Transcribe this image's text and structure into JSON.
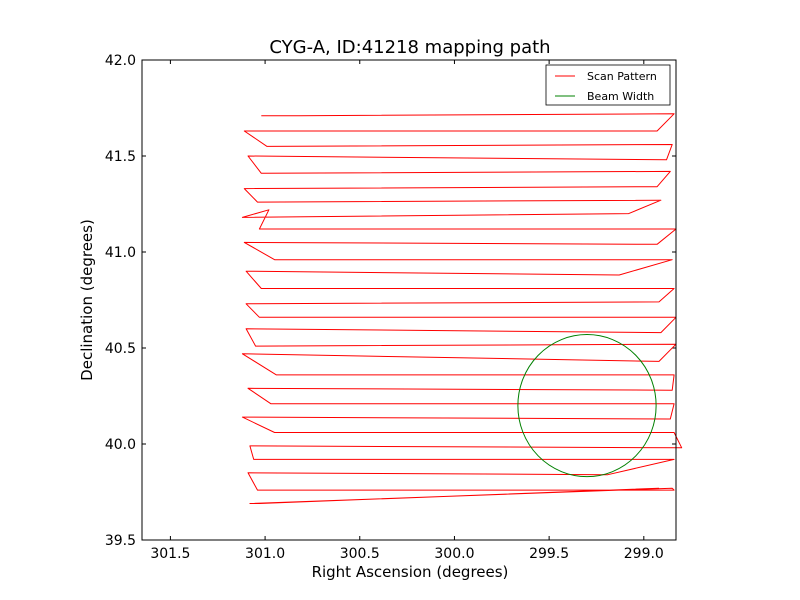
{
  "chart_data": {
    "type": "line",
    "title": "CYG-A, ID:41218 mapping path",
    "xlabel": "Right Ascension (degrees)",
    "ylabel": "Declination (degrees)",
    "xlim": [
      301.65,
      298.83
    ],
    "ylim": [
      39.5,
      42.0
    ],
    "x_inverted": true,
    "xticks": [
      301.5,
      301.0,
      300.5,
      300.0,
      299.5,
      299.0
    ],
    "xtick_labels": [
      "301.5",
      "301.0",
      "300.5",
      "300.0",
      "299.5",
      "299.0"
    ],
    "yticks": [
      39.5,
      40.0,
      40.5,
      41.0,
      41.5,
      42.0
    ],
    "ytick_labels": [
      "39.5",
      "40.0",
      "40.5",
      "41.0",
      "41.5",
      "42.0"
    ],
    "grid": false,
    "legend": {
      "placement": "top-right"
    },
    "series": [
      {
        "name": "Scan Pattern",
        "color": "#ff0000",
        "x": [
          301.02,
          300.82,
          298.84,
          298.93,
          301.11,
          300.99,
          298.85,
          298.88,
          301.09,
          301.02,
          298.86,
          298.93,
          301.11,
          301.04,
          298.91,
          299.08,
          301.12,
          300.98,
          301.03,
          298.83,
          298.93,
          301.11,
          300.95,
          298.85,
          299.13,
          301.1,
          301.02,
          298.84,
          298.92,
          301.1,
          301.03,
          298.83,
          298.91,
          301.1,
          301.05,
          298.83,
          298.92,
          301.12,
          300.94,
          298.84,
          298.85,
          301.09,
          300.97,
          298.84,
          298.86,
          301.12,
          300.95,
          298.84,
          298.8,
          301.08,
          301.06,
          298.84,
          299.19,
          301.09,
          301.04,
          298.84,
          298.85,
          301.08,
          301.03,
          298.92
        ],
        "y": [
          41.71,
          41.71,
          41.72,
          41.63,
          41.63,
          41.55,
          41.56,
          41.48,
          41.5,
          41.41,
          41.42,
          41.34,
          41.33,
          41.26,
          41.27,
          41.2,
          41.18,
          41.22,
          41.12,
          41.12,
          41.04,
          41.05,
          40.96,
          40.96,
          40.88,
          40.9,
          40.81,
          40.81,
          40.74,
          40.73,
          40.66,
          40.66,
          40.58,
          40.6,
          40.51,
          40.52,
          40.43,
          40.47,
          40.36,
          40.36,
          40.28,
          40.29,
          40.21,
          40.21,
          40.13,
          40.14,
          40.06,
          40.06,
          39.98,
          39.99,
          39.92,
          39.92,
          39.84,
          39.85,
          39.76,
          39.76,
          39.77,
          39.69,
          39.69,
          39.77
        ]
      },
      {
        "name": "Beam Width",
        "color": "#008000",
        "center": [
          299.3,
          40.2
        ],
        "radius_ra": 0.365,
        "radius_dec": 0.37
      }
    ]
  }
}
